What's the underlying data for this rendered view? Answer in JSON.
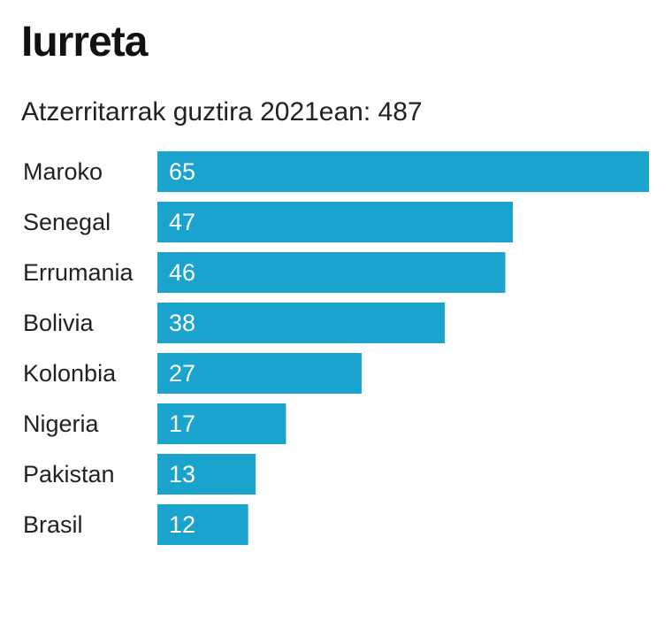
{
  "chart_data": {
    "type": "bar",
    "orientation": "horizontal",
    "title": "Iurreta",
    "subtitle": "Atzerritarrak guztira 2021ean: 487",
    "categories": [
      "Maroko",
      "Senegal",
      "Errumania",
      "Bolivia",
      "Kolonbia",
      "Nigeria",
      "Pakistan",
      "Brasil"
    ],
    "values": [
      65,
      47,
      46,
      38,
      27,
      17,
      13,
      12
    ],
    "value_labels": [
      "65",
      "47",
      "46",
      "38",
      "27",
      "17",
      "13",
      "12"
    ],
    "xlim": [
      0,
      65
    ],
    "grid": false,
    "legend": "none",
    "bar_color": "#1aa3cc",
    "value_label_color": "#ffffff"
  }
}
